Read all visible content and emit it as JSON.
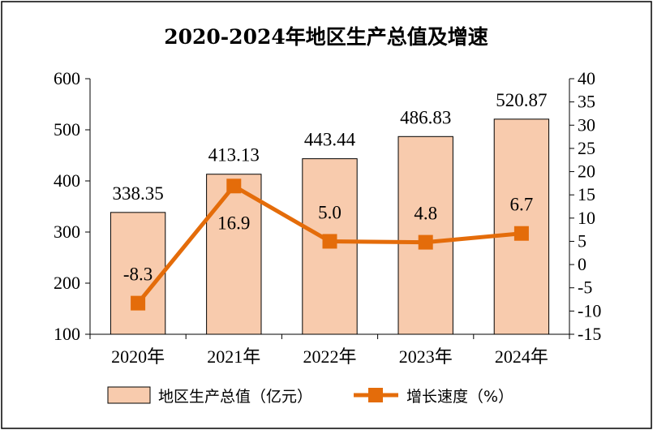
{
  "chart_data": {
    "type": "bar",
    "title": "2020-2024年地区生产总值及增速",
    "categories": [
      "2020年",
      "2021年",
      "2022年",
      "2023年",
      "2024年"
    ],
    "series": [
      {
        "name": "地区生产总值（亿元）",
        "type": "bar",
        "axis": "left",
        "values": [
          338.35,
          413.13,
          443.44,
          486.83,
          520.87
        ],
        "labels": [
          "338.35",
          "413.13",
          "443.44",
          "486.83",
          "520.87"
        ],
        "color": "#f8cbad"
      },
      {
        "name": "增长速度（%）",
        "type": "line",
        "axis": "right",
        "values": [
          -8.3,
          16.9,
          5.0,
          4.8,
          6.7
        ],
        "labels": [
          "-8.3",
          "16.9",
          "5.0",
          "4.8",
          "6.7"
        ],
        "color": "#e46c0a"
      }
    ],
    "y_left": {
      "min": 100,
      "max": 600,
      "step": 100
    },
    "y_right": {
      "min": -15,
      "max": 40,
      "step": 5
    },
    "legend": "bottom",
    "grid": false
  }
}
